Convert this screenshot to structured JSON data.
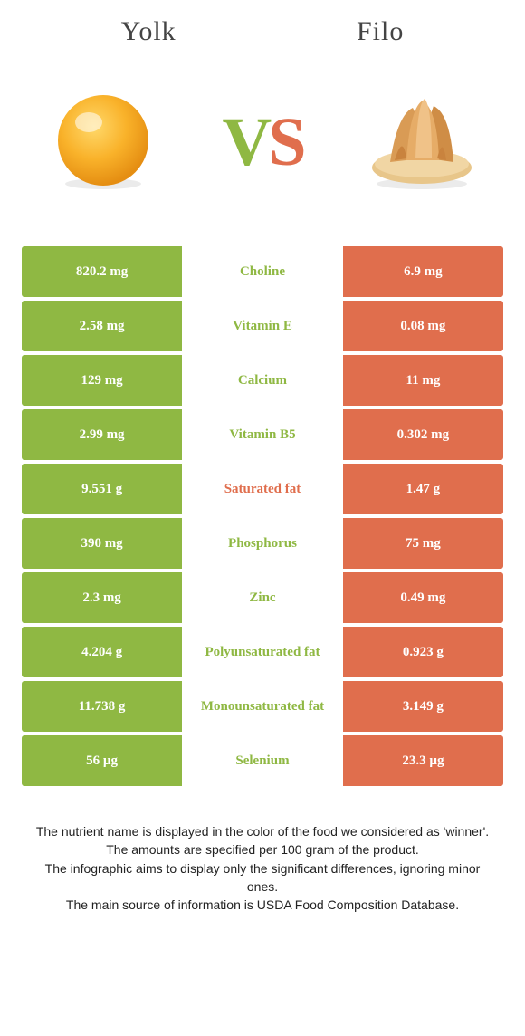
{
  "header": {
    "left_title": "Yolk",
    "right_title": "Filo",
    "vs_v": "V",
    "vs_s": "S"
  },
  "colors": {
    "yolk": "#8fb843",
    "filo": "#e06e4d",
    "cell_text": "#ffffff"
  },
  "rows": [
    {
      "left": "820.2 mg",
      "label": "Choline",
      "right": "6.9 mg",
      "winner": "yolk"
    },
    {
      "left": "2.58 mg",
      "label": "Vitamin E",
      "right": "0.08 mg",
      "winner": "yolk"
    },
    {
      "left": "129 mg",
      "label": "Calcium",
      "right": "11 mg",
      "winner": "yolk"
    },
    {
      "left": "2.99 mg",
      "label": "Vitamin B5",
      "right": "0.302 mg",
      "winner": "yolk"
    },
    {
      "left": "9.551 g",
      "label": "Saturated fat",
      "right": "1.47 g",
      "winner": "filo"
    },
    {
      "left": "390 mg",
      "label": "Phosphorus",
      "right": "75 mg",
      "winner": "yolk"
    },
    {
      "left": "2.3 mg",
      "label": "Zinc",
      "right": "0.49 mg",
      "winner": "yolk"
    },
    {
      "left": "4.204 g",
      "label": "Polyunsaturated fat",
      "right": "0.923 g",
      "winner": "yolk"
    },
    {
      "left": "11.738 g",
      "label": "Monounsaturated fat",
      "right": "3.149 g",
      "winner": "yolk"
    },
    {
      "left": "56 µg",
      "label": "Selenium",
      "right": "23.3 µg",
      "winner": "yolk"
    }
  ],
  "footnotes": [
    "The nutrient name is displayed in the color of the food we considered as 'winner'.",
    "The amounts are specified per 100 gram of the product.",
    "The infographic aims to display only the significant differences, ignoring minor ones.",
    "The main source of information is USDA Food Composition Database."
  ]
}
